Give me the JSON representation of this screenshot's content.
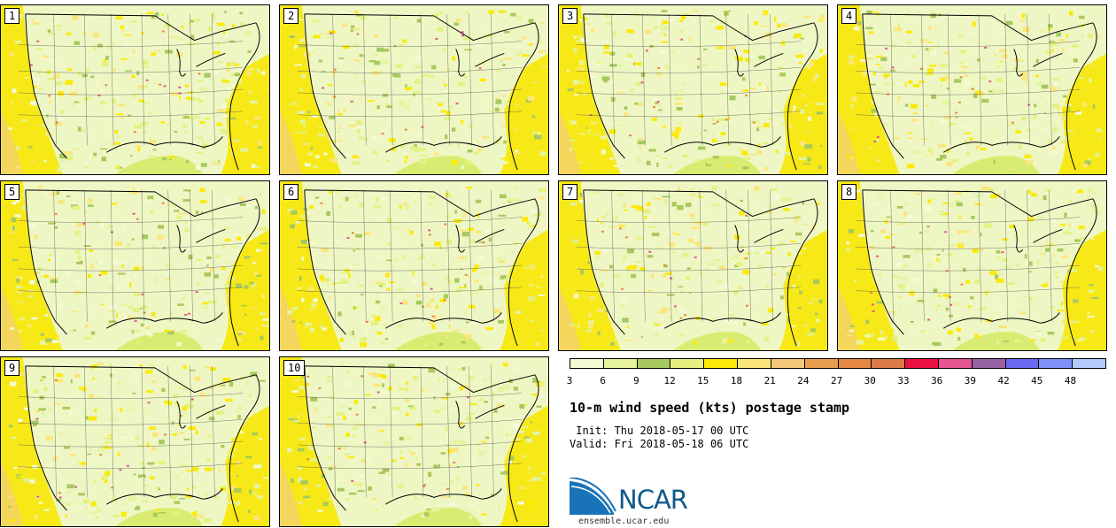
{
  "panels": [
    {
      "label": "1"
    },
    {
      "label": "2"
    },
    {
      "label": "3"
    },
    {
      "label": "4"
    },
    {
      "label": "5"
    },
    {
      "label": "6"
    },
    {
      "label": "7"
    },
    {
      "label": "8"
    },
    {
      "label": "9"
    },
    {
      "label": "10"
    }
  ],
  "colorbar": {
    "ticks": [
      "3",
      "6",
      "9",
      "12",
      "15",
      "18",
      "21",
      "24",
      "27",
      "30",
      "33",
      "36",
      "39",
      "42",
      "45",
      "48"
    ],
    "colors": [
      "#f4fad3",
      "#e6f39f",
      "#a8c95e",
      "#e6f080",
      "#fbea08",
      "#fbe67c",
      "#f3c979",
      "#e8a04e",
      "#e48844",
      "#dc7b48",
      "#ec1143",
      "#e45591",
      "#9863a3",
      "#6a6af2",
      "#7f92fb",
      "#b4cbfb"
    ]
  },
  "title": "10-m wind speed (kts) postage stamp",
  "init_text": " Init: Thu 2018-05-17 00 UTC",
  "valid_text": "Valid: Fri 2018-05-18 06 UTC",
  "logo": {
    "text": "NCAR",
    "site": "ensemble.ucar.edu"
  }
}
